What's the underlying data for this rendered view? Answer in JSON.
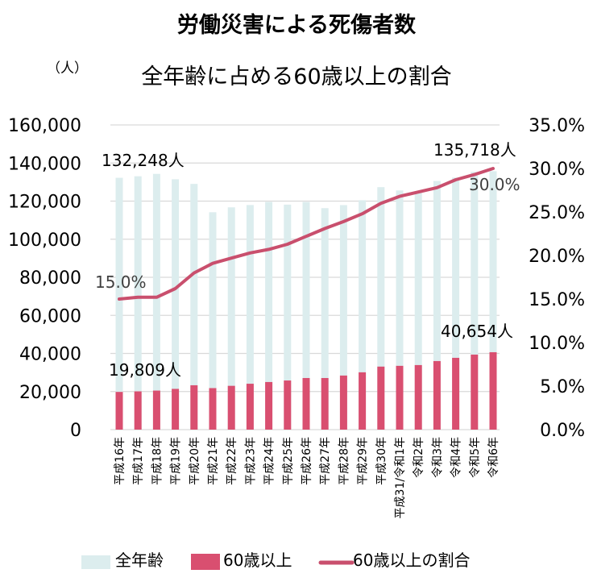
{
  "chart_data": {
    "type": "bar+line",
    "title": "労働災害による死傷者数",
    "subtitle": "全年齢に占める60歳以上の割合",
    "ylabel_left": "（人）",
    "ylim_left": [
      0,
      160000
    ],
    "yticks_left": [
      "0",
      "20,000",
      "40,000",
      "60,000",
      "80,000",
      "100,000",
      "120,000",
      "140,000",
      "160,000"
    ],
    "ylim_right": [
      0,
      35
    ],
    "yticks_right": [
      "0.0%",
      "5.0%",
      "10.0%",
      "15.0%",
      "20.0%",
      "25.0%",
      "30.0%",
      "35.0%"
    ],
    "grid": true,
    "categories": [
      "平成16年",
      "平成17年",
      "平成18年",
      "平成19年",
      "平成20年",
      "平成21年",
      "平成22年",
      "平成23年",
      "平成24年",
      "平成25年",
      "平成26年",
      "平成27年",
      "平成28年",
      "平成29年",
      "平成30年",
      "平成31/令和1年",
      "令和2年",
      "令和3年",
      "令和4年",
      "令和5年",
      "令和6年"
    ],
    "series": [
      {
        "name": "全年齢",
        "type": "bar",
        "axis": "left",
        "color": "#dcedee",
        "values": [
          132248,
          133050,
          134298,
          131478,
          129026,
          114152,
          116733,
          117958,
          119576,
          118157,
          119535,
          116311,
          117910,
          120460,
          127329,
          125611,
          125115,
          130586,
          132355,
          135371,
          135718
        ]
      },
      {
        "name": "60歳以上",
        "type": "bar",
        "axis": "left",
        "color": "#d94f70",
        "values": [
          19809,
          20100,
          20500,
          21400,
          23300,
          21800,
          23000,
          24100,
          25000,
          25800,
          27100,
          27100,
          28400,
          30100,
          33100,
          33500,
          33900,
          36000,
          37700,
          39400,
          40654
        ]
      },
      {
        "name": "60歳以上の割合",
        "type": "line",
        "axis": "right",
        "color": "#c94f6d",
        "values": [
          15.0,
          15.2,
          15.2,
          16.2,
          18.0,
          19.1,
          19.7,
          20.3,
          20.7,
          21.3,
          22.2,
          23.1,
          23.9,
          24.8,
          26.0,
          26.8,
          27.3,
          27.8,
          28.7,
          29.3,
          30.0
        ]
      }
    ],
    "annotations": {
      "first_total": "132,248人",
      "last_total": "135,718人",
      "first_60": "19,809人",
      "last_60": "40,654人",
      "first_ratio": "15.0%",
      "last_ratio": "30.0%"
    },
    "legend": {
      "position": "bottom",
      "items": [
        "全年齢",
        "60歳以上",
        "60歳以上の割合"
      ]
    },
    "gridline_color": "#d9d9d9"
  }
}
